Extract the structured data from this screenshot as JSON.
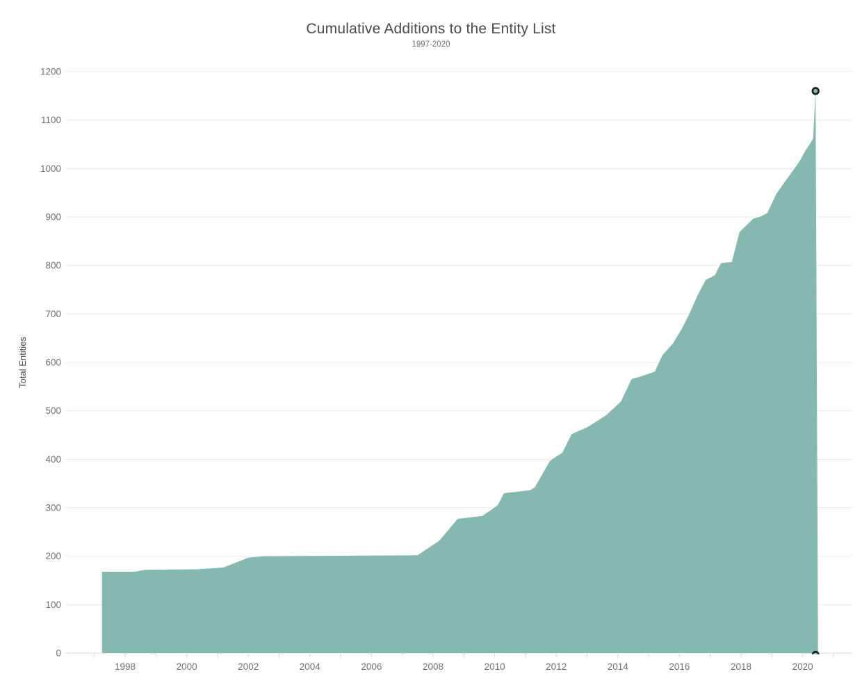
{
  "chart_data": {
    "type": "area",
    "title": "Cumulative Additions to the Entity List",
    "subtitle": "1997-2020",
    "xlabel": "",
    "ylabel": "Total Entities",
    "xlim": [
      1996.05,
      2021.6
    ],
    "ylim": [
      0,
      1200
    ],
    "grid": true,
    "legend_position": "none",
    "y_ticks": [
      0,
      100,
      200,
      300,
      400,
      500,
      600,
      700,
      800,
      900,
      1000,
      1100,
      1200
    ],
    "x_labeled_ticks": [
      1998,
      2000,
      2002,
      2004,
      2006,
      2008,
      2010,
      2012,
      2014,
      2016,
      2018,
      2020
    ],
    "x_minor_ticks": [
      1997,
      1998,
      1999,
      2000,
      2001,
      2002,
      2003,
      2004,
      2005,
      2006,
      2007,
      2008,
      2009,
      2010,
      2011,
      2012,
      2013,
      2014,
      2015,
      2016,
      2017,
      2018,
      2019,
      2020,
      2021
    ],
    "series": [
      {
        "name": "Total Entities",
        "points": [
          [
            1997.25,
            168
          ],
          [
            1998.3,
            168
          ],
          [
            1998.65,
            172
          ],
          [
            2000.3,
            173
          ],
          [
            2000.8,
            175
          ],
          [
            2001.2,
            177
          ],
          [
            2002.0,
            197
          ],
          [
            2002.5,
            200
          ],
          [
            2007.5,
            202
          ],
          [
            2008.2,
            232
          ],
          [
            2008.8,
            277
          ],
          [
            2009.6,
            283
          ],
          [
            2010.1,
            305
          ],
          [
            2010.3,
            330
          ],
          [
            2011.15,
            336
          ],
          [
            2011.3,
            342
          ],
          [
            2011.8,
            397
          ],
          [
            2012.2,
            414
          ],
          [
            2012.5,
            452
          ],
          [
            2013.0,
            466
          ],
          [
            2013.6,
            490
          ],
          [
            2014.1,
            519
          ],
          [
            2014.45,
            566
          ],
          [
            2014.7,
            570
          ],
          [
            2015.2,
            581
          ],
          [
            2015.45,
            615
          ],
          [
            2015.8,
            640
          ],
          [
            2016.1,
            672
          ],
          [
            2016.3,
            697
          ],
          [
            2016.6,
            740
          ],
          [
            2016.85,
            770
          ],
          [
            2017.15,
            780
          ],
          [
            2017.35,
            805
          ],
          [
            2017.7,
            807
          ],
          [
            2017.95,
            869
          ],
          [
            2018.4,
            897
          ],
          [
            2018.6,
            900
          ],
          [
            2018.85,
            908
          ],
          [
            2019.15,
            948
          ],
          [
            2019.45,
            975
          ],
          [
            2019.7,
            997
          ],
          [
            2019.9,
            1015
          ],
          [
            2020.1,
            1038
          ],
          [
            2020.25,
            1052
          ],
          [
            2020.34,
            1062
          ],
          [
            2020.42,
            1160
          ]
        ],
        "close_at_year": 2020.5
      }
    ],
    "end_markers": [
      {
        "year": 2020.42,
        "value": 1160
      },
      {
        "year": 2020.42,
        "value": 0
      }
    ],
    "colors": {
      "area": "#85b8b0",
      "marker_ring": "#1b1b1b",
      "marker_fill": "#85b8b0",
      "grid": "#ececec",
      "axis_line": "#e1e1e1",
      "tick": "#d9d9d9",
      "title_text": "#4a4a4a",
      "axis_text": "#707070",
      "ylabel_text": "#4a4a4a"
    }
  }
}
